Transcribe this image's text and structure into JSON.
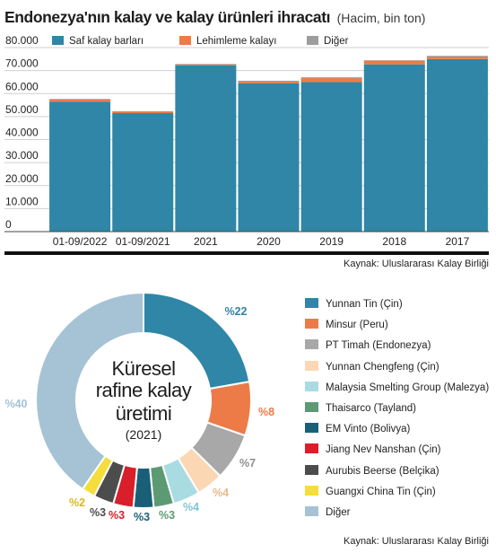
{
  "title": "Endonezya'nın kalay ve kalay ürünleri ihracatı",
  "subtitle": "(Hacim, bin ton)",
  "source_top": "Kaynak: Uluslararası Kalay Birliği",
  "source_bottom": "Kaynak: Uluslararası Kalay Birliği",
  "colors": {
    "teal": "#2f86a6",
    "orange": "#ec7b47",
    "gray": "#9d9d9d",
    "grid": "#cfcfcf"
  },
  "chart_data": [
    {
      "type": "bar",
      "stacked": true,
      "categories": [
        "01-09/2022",
        "01-09/2021",
        "2021",
        "2020",
        "2019",
        "2018",
        "2017"
      ],
      "series": [
        {
          "name": "Saf kalay barları",
          "color": "#2f86a6",
          "values": [
            56500,
            51500,
            72300,
            64500,
            65000,
            72700,
            75000
          ]
        },
        {
          "name": "Lehimleme kalayı",
          "color": "#ec7b47",
          "values": [
            900,
            600,
            300,
            700,
            1700,
            1600,
            900
          ]
        },
        {
          "name": "Diğer",
          "color": "#9d9d9d",
          "values": [
            300,
            200,
            300,
            400,
            400,
            200,
            500
          ]
        }
      ],
      "yticks": [
        "0",
        "10.000",
        "20.000",
        "30.000",
        "40.000",
        "50.000",
        "60.000",
        "70.000",
        "80.000"
      ],
      "ylim": [
        0,
        80000
      ],
      "grid": true,
      "legend": "top"
    },
    {
      "type": "pie",
      "donut": true,
      "center_label": [
        "Küresel",
        "rafine kalay",
        "üretimi",
        "(2021)"
      ],
      "slices": [
        {
          "name": "Yunnan Tin (Çin)",
          "value": 22,
          "label": "%22",
          "color": "#2f86a6"
        },
        {
          "name": "Minsur (Peru)",
          "value": 8,
          "label": "%8",
          "color": "#ec7b47"
        },
        {
          "name": "PT Timah (Endonezya)",
          "value": 7,
          "label": "%7",
          "color": "#a8a8a8"
        },
        {
          "name": "Yunnan Chengfeng (Çin)",
          "value": 4,
          "label": "%4",
          "color": "#fbd7b4"
        },
        {
          "name": "Malaysia Smelting Group (Malezya)",
          "value": 4,
          "label": "%4",
          "color": "#a9dbe2"
        },
        {
          "name": "Thaisarco (Tayland)",
          "value": 3,
          "label": "%3",
          "color": "#5c9a74"
        },
        {
          "name": "EM Vinto (Bolivya)",
          "value": 3,
          "label": "%3",
          "color": "#1a5f78"
        },
        {
          "name": "Jiang Nev Nanshan (Çin)",
          "value": 3,
          "label": "%3",
          "color": "#d81f2a"
        },
        {
          "name": "Aurubis Beerse (Belçika)",
          "value": 3,
          "label": "%3",
          "color": "#4c4c4c"
        },
        {
          "name": "Guangxi China Tin (Çin)",
          "value": 2,
          "label": "%2",
          "color": "#f5dd3c"
        },
        {
          "name": "Diğer",
          "value": 40,
          "label": "%40",
          "color": "#a5c3d4"
        }
      ]
    }
  ]
}
